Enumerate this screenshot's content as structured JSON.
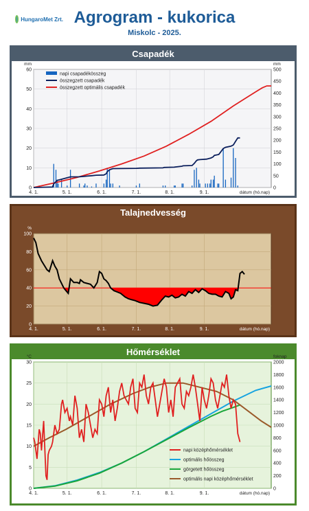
{
  "header": {
    "logo_text": "HungaroMet Zrt.",
    "title": "Agrogram - kukorica",
    "subtitle": "Miskolc  - 2025."
  },
  "colors": {
    "accent": "#1d5b97",
    "rain_bar": "#1565c0",
    "rain_sum": "#0b1f5c",
    "optimal": "#e02020",
    "moisture_fill": "#ff0000",
    "temp_daily": "#e02020",
    "heat_opt": "#16a3e0",
    "heat_rolling": "#1aa63a",
    "temp_opt": "#9a5a2a"
  },
  "chart_data": [
    {
      "type": "bar",
      "title": "Csapadék",
      "xlabel": "dátum (hó.nap)",
      "ylabel": "mm",
      "y2label": "mm",
      "xticks": [
        "4. 1.",
        "5. 1.",
        "6. 1.",
        "7. 1.",
        "8. 1.",
        "9. 1."
      ],
      "xlim": [
        1,
        214
      ],
      "ylim": [
        0,
        60
      ],
      "y2lim": [
        0,
        500
      ],
      "yticks": [
        "0",
        "10",
        "20",
        "30",
        "40",
        "50",
        "60"
      ],
      "y2ticks": [
        "0",
        "50",
        "100",
        "150",
        "200",
        "250",
        "300",
        "350",
        "400",
        "450",
        "500"
      ],
      "legend": [
        "napi csapadékösszeg",
        "összegzett csapadék",
        "összegzett optimális csapadék"
      ],
      "daily_rain": {
        "x": [
          3,
          4,
          6,
          18,
          19,
          21,
          22,
          23,
          26,
          31,
          34,
          42,
          46,
          47,
          49,
          53,
          57,
          64,
          66,
          67,
          69,
          70,
          72,
          78,
          93,
          96,
          117,
          119,
          127,
          128,
          134,
          135,
          143,
          145,
          147,
          149,
          150,
          155,
          157,
          159,
          160,
          162,
          163,
          166,
          167,
          171,
          173,
          178,
          180,
          182,
          184
        ],
        "values": [
          0.5,
          0.5,
          1,
          1,
          12,
          9,
          4,
          2,
          4,
          1,
          9,
          2,
          1,
          2,
          1,
          0.5,
          2,
          2,
          4,
          10,
          9,
          2,
          2,
          1,
          1,
          2,
          1,
          1,
          1,
          1,
          2,
          2,
          1,
          9,
          10,
          4,
          2,
          2,
          2,
          2,
          4,
          4,
          6,
          2,
          2,
          20,
          4,
          5,
          20,
          15,
          1
        ]
      },
      "cum_rain": {
        "x": [
          1,
          18,
          19,
          21,
          22,
          26,
          34,
          41,
          46,
          53,
          57,
          64,
          66,
          67,
          69,
          72,
          93,
          96,
          117,
          118,
          127,
          128,
          134,
          135,
          143,
          145,
          147,
          148,
          150,
          156,
          160,
          162,
          163,
          166,
          167,
          171,
          173,
          178,
          180,
          182,
          184,
          186
        ],
        "values": [
          0,
          2,
          15,
          25,
          30,
          35,
          45,
          45,
          47,
          50,
          52,
          53,
          58,
          67,
          75,
          80,
          81,
          82,
          83,
          85,
          86,
          87,
          90,
          92,
          93,
          102,
          114,
          117,
          118,
          120,
          125,
          130,
          136,
          139,
          140,
          165,
          170,
          175,
          180,
          195,
          210,
          210
        ]
      },
      "opt_rain": {
        "x": [
          1,
          20,
          40,
          60,
          80,
          100,
          120,
          140,
          160,
          180,
          190,
          200,
          206,
          210,
          214
        ],
        "values": [
          0,
          20,
          43,
          70,
          100,
          133,
          175,
          225,
          280,
          345,
          375,
          405,
          422,
          430,
          430
        ]
      }
    },
    {
      "type": "area",
      "title": "Talajnedvesség",
      "xlabel": "dátum (hó.nap)",
      "ylabel": "%",
      "xticks": [
        "4. 1.",
        "5. 1.",
        "6. 1.",
        "7. 1.",
        "8. 1.",
        "9. 1."
      ],
      "xlim": [
        1,
        214
      ],
      "ylim": [
        0,
        100
      ],
      "yticks": [
        "0",
        "20",
        "40",
        "60",
        "80",
        "100"
      ],
      "threshold": 40,
      "moisture": {
        "x": [
          1,
          3,
          5,
          8,
          10,
          13,
          15,
          18,
          20,
          22,
          24,
          26,
          28,
          30,
          32,
          34,
          37,
          40,
          42,
          43,
          46,
          49,
          52,
          55,
          58,
          60,
          62,
          64,
          66,
          68,
          70,
          73,
          75,
          79,
          83,
          86,
          89,
          92,
          96,
          100,
          104,
          108,
          112,
          116,
          119,
          122,
          125,
          128,
          131,
          134,
          137,
          140,
          143,
          146,
          149,
          152,
          155,
          158,
          161,
          164,
          167,
          170,
          173,
          176,
          178,
          180,
          182,
          184,
          186,
          188,
          190
        ],
        "values": [
          95,
          90,
          78,
          70,
          66,
          60,
          58,
          70,
          64,
          60,
          50,
          45,
          40,
          37,
          34,
          50,
          46,
          46,
          45,
          49,
          46,
          45,
          44,
          40,
          46,
          58,
          56,
          50,
          48,
          45,
          40,
          37,
          36,
          34,
          30,
          28,
          27,
          26,
          24,
          23,
          22,
          20,
          21,
          27,
          31,
          30,
          32,
          29,
          30,
          33,
          31,
          36,
          34,
          38,
          35,
          39,
          37,
          34,
          33,
          33,
          31,
          30,
          36,
          34,
          28,
          30,
          38,
          37,
          56,
          58,
          55
        ]
      }
    },
    {
      "type": "line",
      "title": "Hőmérséklet",
      "xlabel": "dátum (hó.nap)",
      "ylabel": "°C",
      "y2label": "foknap",
      "xticks": [
        "4. 1.",
        "5. 1.",
        "6. 1.",
        "7. 1.",
        "8. 1.",
        "9. 1."
      ],
      "xlim": [
        1,
        214
      ],
      "ylim": [
        0,
        30
      ],
      "y2lim": [
        0,
        2000
      ],
      "yticks": [
        "0",
        "5",
        "10",
        "15",
        "20",
        "25",
        "30"
      ],
      "y2ticks": [
        "0",
        "200",
        "400",
        "600",
        "800",
        "1000",
        "1200",
        "1400",
        "1600",
        "1800",
        "2000"
      ],
      "legend": [
        "napi középhőmérséklet",
        "optimális hőösszeg",
        "görgetett hőösszeg",
        "optimális napi középhőmérséklet"
      ],
      "daily_temp": {
        "x": [
          1,
          2,
          4,
          6,
          7,
          8,
          10,
          12,
          13,
          14,
          15,
          17,
          18,
          20,
          22,
          24,
          26,
          27,
          29,
          31,
          33,
          34,
          36,
          38,
          40,
          42,
          44,
          46,
          48,
          50,
          52,
          54,
          56,
          58,
          60,
          62,
          64,
          66,
          68,
          70,
          72,
          74,
          76,
          78,
          80,
          82,
          84,
          86,
          88,
          90,
          92,
          94,
          96,
          98,
          100,
          102,
          104,
          106,
          108,
          110,
          112,
          114,
          116,
          118,
          120,
          122,
          124,
          126,
          128,
          130,
          132,
          134,
          136,
          138,
          140,
          142,
          144,
          146,
          148,
          150,
          152,
          154,
          156,
          158,
          160,
          162,
          164,
          166,
          168,
          170,
          172,
          174,
          176,
          178,
          180,
          182,
          184,
          186
        ],
        "values": [
          12,
          11,
          7,
          14,
          13,
          9,
          16,
          3,
          2,
          8,
          9,
          10,
          11,
          15,
          13,
          14,
          20,
          21,
          18,
          19,
          16,
          17,
          15,
          22,
          19,
          12,
          14,
          11,
          20,
          18,
          15,
          12,
          14,
          13,
          21,
          20,
          17,
          22,
          24,
          18,
          21,
          16,
          19,
          23,
          25,
          22,
          21,
          20,
          24,
          26,
          19,
          18,
          25,
          24,
          27,
          22,
          20,
          24,
          25,
          21,
          17,
          20,
          23,
          26,
          24,
          18,
          21,
          17,
          24,
          25,
          26,
          20,
          19,
          23,
          22,
          24,
          27,
          24,
          20,
          16,
          24,
          21,
          19,
          22,
          26,
          25,
          21,
          19,
          22,
          25,
          24,
          27,
          22,
          19,
          21,
          20,
          13,
          11
        ]
      },
      "opt_heatsum": {
        "x": [
          1,
          20,
          40,
          60,
          80,
          100,
          120,
          140,
          160,
          180,
          200,
          214
        ],
        "values": [
          0,
          40,
          130,
          250,
          400,
          580,
          780,
          980,
          1180,
          1380,
          1550,
          1620
        ]
      },
      "rolling_heatsum": {
        "x": [
          1,
          20,
          40,
          60,
          80,
          100,
          120,
          140,
          160,
          170,
          180,
          186
        ],
        "values": [
          0,
          35,
          120,
          240,
          400,
          580,
          770,
          960,
          1140,
          1220,
          1280,
          1320
        ]
      },
      "opt_daily_temp": {
        "x": [
          1,
          15,
          30,
          50,
          70,
          90,
          105,
          120,
          135,
          150,
          165,
          180,
          195,
          205,
          214
        ],
        "values": [
          10,
          12,
          14,
          17,
          20,
          22.5,
          24,
          25,
          25,
          24,
          23,
          21,
          18,
          16,
          14.5
        ]
      }
    }
  ]
}
